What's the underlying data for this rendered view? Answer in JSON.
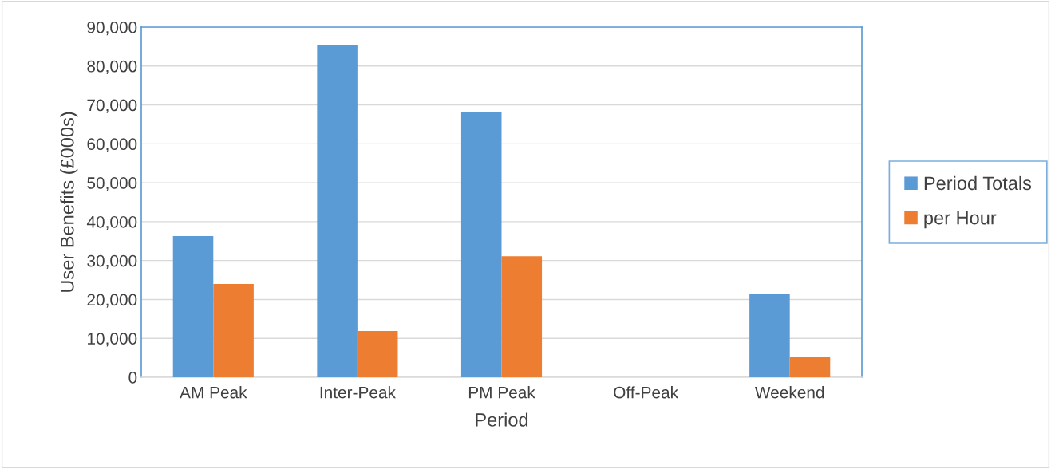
{
  "chart_data": {
    "type": "bar",
    "xlabel": "Period",
    "ylabel": "User Benefits (£000s)",
    "categories": [
      "AM Peak",
      "Inter-Peak",
      "PM Peak",
      "Off-Peak",
      "Weekend"
    ],
    "series": [
      {
        "name": "Period Totals",
        "color": "#5b9bd5",
        "values": [
          36300,
          85500,
          68200,
          0,
          21500
        ]
      },
      {
        "name": "per Hour",
        "color": "#ed7d31",
        "values": [
          24000,
          11900,
          31100,
          0,
          5300
        ]
      }
    ],
    "ylim": [
      0,
      90000
    ],
    "yticks": [
      0,
      {
        "value": 10000,
        "label": "10,000"
      },
      {
        "value": 20000,
        "label": "20,000"
      },
      {
        "value": 30000,
        "label": "30,000"
      },
      {
        "value": 40000,
        "label": "40,000"
      },
      {
        "value": 50000,
        "label": "50,000"
      },
      {
        "value": 60000,
        "label": "60,000"
      },
      {
        "value": 70000,
        "label": "70,000"
      },
      {
        "value": 80000,
        "label": "80,000"
      },
      {
        "value": 90000,
        "label": "90,000"
      }
    ],
    "grid": "y",
    "legend": "right"
  }
}
